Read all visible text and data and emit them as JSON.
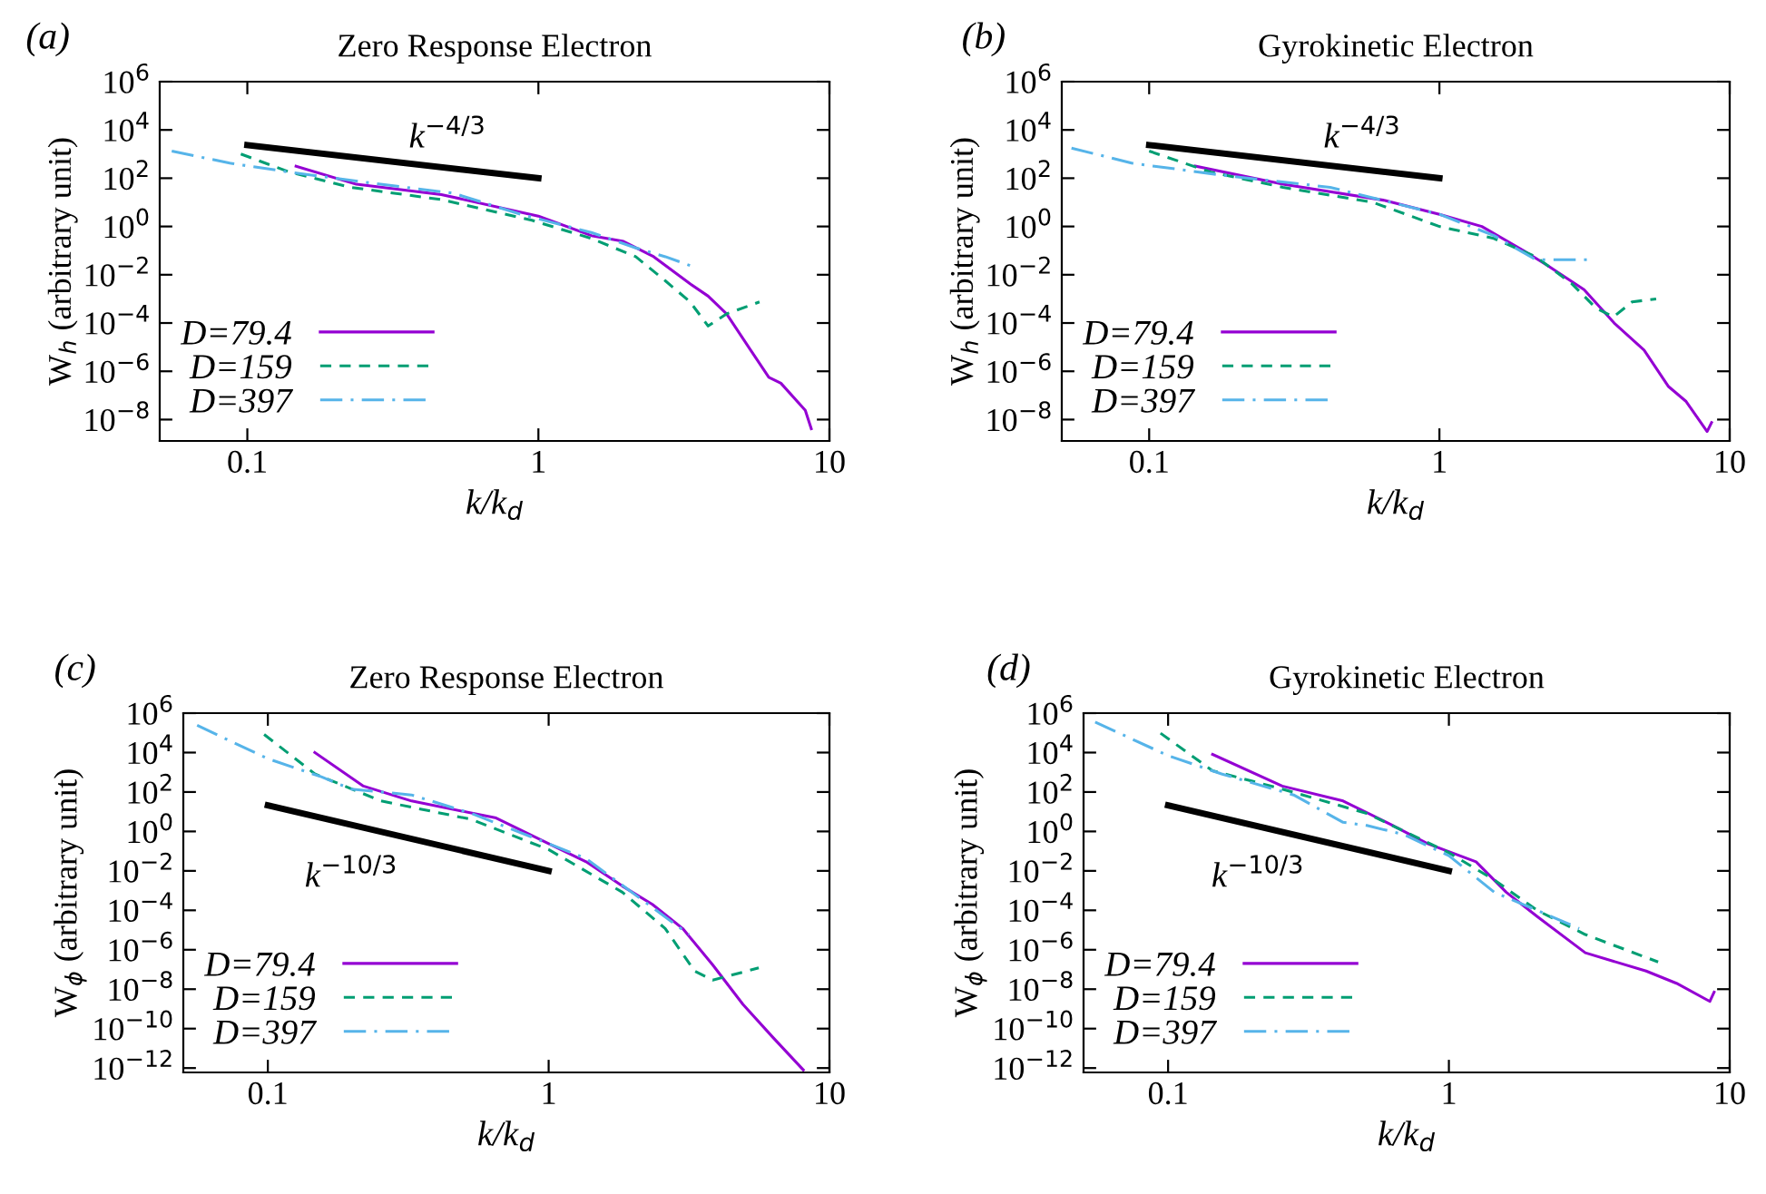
{
  "chart_data": [
    {
      "type": "line",
      "title": "Zero Response Electron",
      "xlabel": "k/k$_{d}$",
      "ylabel": "W$_{h}$ (arbitrary unit)",
      "log": "xy",
      "legend": "bottom left",
      "xlim": [
        0.05,
        10
      ],
      "ylim": [
        1.3e-09,
        1000000.0
      ],
      "xticks": [
        0.1,
        1,
        10
      ],
      "yticks": [
        {
          "value": 1000000.0,
          "label": "10$^{6}$"
        },
        {
          "value": 10000.0,
          "label": "10$^{4}$"
        },
        {
          "value": 100.0,
          "label": "10$^{2}$"
        },
        {
          "value": 1,
          "label": "10$^{0}$"
        },
        {
          "value": 0.01,
          "label": "10$^{−2}$"
        },
        {
          "value": 0.0001,
          "label": "10$^{−4}$"
        },
        {
          "value": 1e-06,
          "label": "10$^{−6}$"
        },
        {
          "value": 1e-08,
          "label": "10$^{−8}$"
        }
      ],
      "annotations": [
        "(a)",
        "k$^{−4/3}$"
      ],
      "series": [
        {
          "name": "D=79.4",
          "color": "#9400d3",
          "line_style": "solid",
          "x": [
            0.147,
            0.237,
            0.464,
            1,
            1.52,
            1.96,
            2.49,
            3.32,
            3.83,
            4.43,
            5.36,
            6.19,
            6.81,
            8.26,
            8.66
          ],
          "values": [
            316,
            56,
            21,
            2.7,
            0.42,
            0.24,
            0.056,
            0.0042,
            0.0013,
            0.00024,
            7.5e-06,
            5.6e-07,
            3.2e-07,
            2.4e-08,
            4.2e-09
          ]
        },
        {
          "name": "D=159",
          "color": "#009e73",
          "line_style": "dashed",
          "x": [
            0.095,
            0.14,
            0.226,
            0.464,
            0.95,
            1.52,
            2.16,
            2.73,
            3.32,
            3.83,
            4.43,
            5.75
          ],
          "values": [
            1000,
            178,
            42,
            13,
            1.8,
            0.32,
            0.056,
            0.0056,
            0.00075,
            7.5e-05,
            0.00024,
            0.00075
          ]
        },
        {
          "name": "D=397",
          "color": "#56b4e9",
          "line_style": "dashdot",
          "x": [
            0.055,
            0.087,
            0.14,
            0.287,
            0.51,
            0.87,
            1.52,
            2.16,
            2.73,
            3.32
          ],
          "values": [
            1330,
            420,
            178,
            56,
            24,
            3.2,
            0.56,
            0.13,
            0.056,
            0.024
          ]
        },
        {
          "color": "#000000",
          "line_style": "solid",
          "x": [
            0.1,
            1
          ],
          "values": [
            2370,
            100
          ]
        }
      ]
    },
    {
      "type": "line",
      "title": "Gyrokinetic Electron",
      "xlabel": "k/k$_{d}$",
      "ylabel": "W$_{h}$ (arbitrary unit)",
      "log": "xy",
      "legend": "bottom left",
      "xlim": [
        0.05,
        10
      ],
      "ylim": [
        1.3e-09,
        1000000.0
      ],
      "xticks": [
        0.1,
        1,
        10
      ],
      "yticks": [
        {
          "value": 1000000.0,
          "label": "10$^{6}$"
        },
        {
          "value": 10000.0,
          "label": "10$^{4}$"
        },
        {
          "value": 100.0,
          "label": "10$^{2}$"
        },
        {
          "value": 1,
          "label": "10$^{0}$"
        },
        {
          "value": 0.01,
          "label": "10$^{−2}$"
        },
        {
          "value": 0.0001,
          "label": "10$^{−4}$"
        },
        {
          "value": 1e-06,
          "label": "10$^{−6}$"
        },
        {
          "value": 1e-08,
          "label": "10$^{−8}$"
        }
      ],
      "annotations": [
        "(b)",
        "k$^{−4/3}$"
      ],
      "series": [
        {
          "name": "D=79.4",
          "color": "#9400d3",
          "line_style": "solid",
          "x": [
            0.144,
            0.289,
            0.65,
            1,
            1.4,
            1.95,
            2.36,
            3.15,
            4.0,
            5.07,
            6.14,
            7.08,
            8.36,
            8.66
          ],
          "values": [
            316,
            56,
            12,
            3.2,
            1,
            0.1,
            0.024,
            0.0024,
            0.0001,
            7.5e-06,
            2.4e-07,
            5.6e-08,
            3.2e-09,
            7.5e-09
          ]
        },
        {
          "name": "D=159",
          "color": "#009e73",
          "line_style": "dashed",
          "x": [
            0.1,
            0.163,
            0.289,
            0.59,
            1,
            1.54,
            2.15,
            2.86,
            3.46,
            3.98,
            4.61,
            5.58
          ],
          "values": [
            1330,
            178,
            42,
            10,
            1,
            0.32,
            0.056,
            0.0042,
            0.00042,
            0.00018,
            0.00075,
            0.001
          ]
        },
        {
          "name": "D=397",
          "color": "#56b4e9",
          "line_style": "dashdot",
          "x": [
            0.054,
            0.087,
            0.179,
            0.42,
            1,
            1.54,
            2.15,
            2.6,
            3.3
          ],
          "values": [
            1780,
            420,
            133,
            42,
            3.2,
            0.42,
            0.042,
            0.042,
            0.042
          ]
        },
        {
          "color": "#000000",
          "line_style": "solid",
          "x": [
            0.1,
            1
          ],
          "values": [
            2370,
            100
          ]
        }
      ]
    },
    {
      "type": "line",
      "title": "Zero Response Electron",
      "xlabel": "k/k$_{d}$",
      "ylabel": "W$_{ϕ}$ (arbitrary unit)",
      "log": "xy",
      "legend": "bottom left",
      "xlim": [
        0.05,
        10
      ],
      "ylim": [
        6e-13,
        1000000.0
      ],
      "xticks": [
        0.1,
        1,
        10
      ],
      "yticks": [
        {
          "value": 1000000.0,
          "label": "10$^{6}$"
        },
        {
          "value": 10000.0,
          "label": "10$^{4}$"
        },
        {
          "value": 100.0,
          "label": "10$^{2}$"
        },
        {
          "value": 1,
          "label": "10$^{0}$"
        },
        {
          "value": 0.01,
          "label": "10$^{−2}$"
        },
        {
          "value": 0.0001,
          "label": "10$^{−4}$"
        },
        {
          "value": 1e-06,
          "label": "10$^{−6}$"
        },
        {
          "value": 1e-08,
          "label": "10$^{−8}$"
        },
        {
          "value": 1e-10,
          "label": "10$^{−10}$"
        },
        {
          "value": 1e-12,
          "label": "10$^{−12}$"
        }
      ],
      "annotations": [
        "(c)",
        "k$^{−10/3}$"
      ],
      "series": [
        {
          "name": "D=79.4",
          "color": "#9400d3",
          "line_style": "solid",
          "x": [
            0.147,
            0.219,
            0.325,
            0.65,
            1,
            1.36,
            1.83,
            2.34,
            3.0,
            3.84,
            4.92,
            6.3,
            8.07
          ],
          "values": [
            10000,
            200,
            35,
            4.8,
            0.24,
            0.029,
            0.0017,
            0.0002,
            1.2e-05,
            1.7e-07,
            1.7e-09,
            3.5e-11,
            8e-13
          ]
        },
        {
          "name": "D=159",
          "color": "#009e73",
          "line_style": "dashed",
          "x": [
            0.097,
            0.147,
            0.253,
            0.53,
            1,
            1.83,
            2.6,
            3.31,
            3.84,
            5.6
          ],
          "values": [
            83000,
            830,
            35,
            4.1,
            0.12,
            0.00083,
            1.2e-05,
            8.3e-08,
            2.9e-08,
            1.2e-07
          ]
        },
        {
          "name": "D=397",
          "color": "#56b4e9",
          "line_style": "dashdot",
          "x": [
            0.056,
            0.1,
            0.155,
            0.198,
            0.325,
            0.53,
            1,
            1.36,
            2.34,
            3.16
          ],
          "values": [
            240000,
            4900,
            590,
            141,
            71,
            8.3,
            0.24,
            0.042,
            0.00014,
            5.9e-06
          ]
        },
        {
          "color": "#000000",
          "line_style": "solid",
          "x": [
            0.1,
            1
          ],
          "values": [
            21,
            0.01
          ]
        }
      ]
    },
    {
      "type": "line",
      "title": "Gyrokinetic Electron",
      "xlabel": "k/k$_{d}$",
      "ylabel": "W$_{ϕ}$ (arbitrary unit)",
      "log": "xy",
      "legend": "bottom left",
      "xlim": [
        0.05,
        10
      ],
      "ylim": [
        6e-13,
        1000000.0
      ],
      "xticks": [
        0.1,
        1,
        10
      ],
      "yticks": [
        {
          "value": 1000000.0,
          "label": "10$^{6}$"
        },
        {
          "value": 10000.0,
          "label": "10$^{4}$"
        },
        {
          "value": 100.0,
          "label": "10$^{2}$"
        },
        {
          "value": 1,
          "label": "10$^{0}$"
        },
        {
          "value": 0.01,
          "label": "10$^{−2}$"
        },
        {
          "value": 0.0001,
          "label": "10$^{−4}$"
        },
        {
          "value": 1e-06,
          "label": "10$^{−6}$"
        },
        {
          "value": 1e-08,
          "label": "10$^{−8}$"
        },
        {
          "value": 1e-10,
          "label": "10$^{−10}$"
        },
        {
          "value": 1e-12,
          "label": "10$^{−12}$"
        }
      ],
      "annotations": [
        "(d)",
        "k$^{−10/3}$"
      ],
      "series": [
        {
          "name": "D=79.4",
          "color": "#9400d3",
          "line_style": "solid",
          "x": [
            0.144,
            0.255,
            0.42,
            0.62,
            0.84,
            1.25,
            1.6,
            2.06,
            3.06,
            5.04,
            6.46,
            8.5,
            8.8
          ],
          "values": [
            8100,
            200,
            35,
            2.3,
            0.24,
            0.029,
            0.00083,
            4.9e-05,
            7e-07,
            8.3e-08,
            2e-08,
            2.4e-09,
            7e-09
          ]
        },
        {
          "name": "D=159",
          "color": "#009e73",
          "line_style": "dashed",
          "x": [
            0.094,
            0.144,
            0.255,
            0.51,
            1,
            1.45,
            2.06,
            3.06,
            5.56
          ],
          "values": [
            96000,
            1200,
            141,
            8.3,
            0.083,
            0.0035,
            0.0001,
            5.9e-06,
            2.4e-07
          ]
        },
        {
          "name": "D=397",
          "color": "#56b4e9",
          "line_style": "dashdot",
          "x": [
            0.055,
            0.1,
            0.155,
            0.28,
            0.42,
            0.51,
            0.69,
            1,
            1.45,
            2.06,
            2.91
          ],
          "values": [
            350000,
            7000,
            830,
            71,
            2.9,
            2,
            0.7,
            0.059,
            0.00083,
            0.0001,
            1.2e-05
          ]
        },
        {
          "color": "#000000",
          "line_style": "solid",
          "x": [
            0.1,
            1
          ],
          "values": [
            21,
            0.01
          ]
        }
      ]
    }
  ]
}
